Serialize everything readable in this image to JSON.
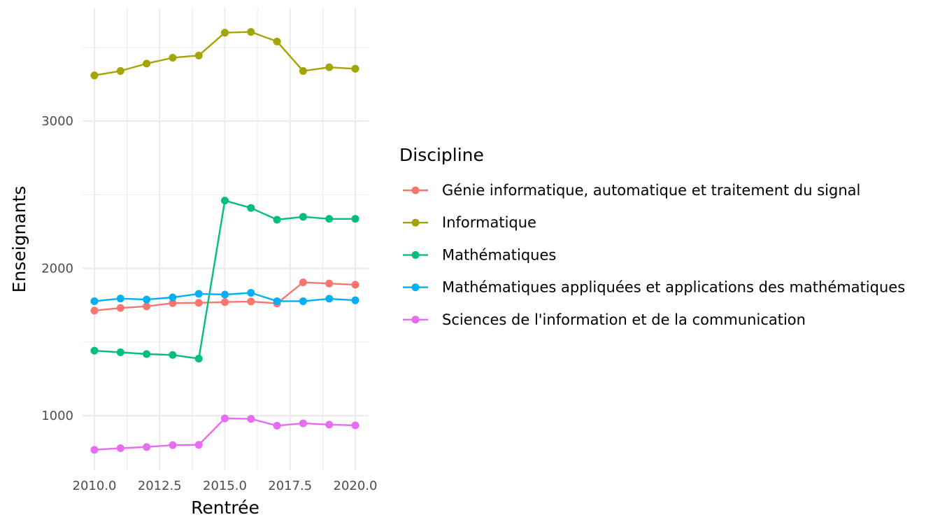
{
  "chart_data": {
    "type": "line",
    "xlabel": "Rentrée",
    "ylabel": "Enseignants",
    "x": [
      2010,
      2011,
      2012,
      2013,
      2014,
      2015,
      2016,
      2017,
      2018,
      2019,
      2020
    ],
    "xlim": [
      2010,
      2020
    ],
    "ylim": [
      620,
      3680
    ],
    "x_ticks": [
      "2010.0",
      "2012.5",
      "2015.0",
      "2017.5",
      "2020.0"
    ],
    "x_tick_values": [
      2010,
      2012.5,
      2015,
      2017.5,
      2020
    ],
    "y_ticks": [
      "1000",
      "2000",
      "3000"
    ],
    "y_tick_values": [
      1000,
      2000,
      3000
    ],
    "grid": true,
    "legend": {
      "title": "Discipline",
      "position": "right"
    },
    "series": [
      {
        "name": "Génie informatique, automatique et traitement du signal",
        "color": "#F8766D",
        "values": [
          1713,
          1731,
          1742,
          1764,
          1766,
          1771,
          1775,
          1762,
          1905,
          1897,
          1889
        ]
      },
      {
        "name": "Informatique",
        "color": "#A3A500",
        "values": [
          3310,
          3340,
          3390,
          3430,
          3445,
          3600,
          3605,
          3540,
          3340,
          3365,
          3355
        ]
      },
      {
        "name": "Mathématiques",
        "color": "#00BF7D",
        "values": [
          1441,
          1430,
          1418,
          1412,
          1387,
          2460,
          2410,
          2330,
          2350,
          2336,
          2336
        ]
      },
      {
        "name": "Mathématiques appliquées et applications des mathématiques",
        "color": "#00B0F6",
        "values": [
          1777,
          1795,
          1788,
          1803,
          1827,
          1822,
          1834,
          1777,
          1777,
          1794,
          1783
        ]
      },
      {
        "name": "Sciences de l'information et de la communication",
        "color": "#E76BF3",
        "values": [
          768,
          779,
          787,
          800,
          802,
          981,
          978,
          932,
          948,
          939,
          934
        ]
      }
    ]
  }
}
